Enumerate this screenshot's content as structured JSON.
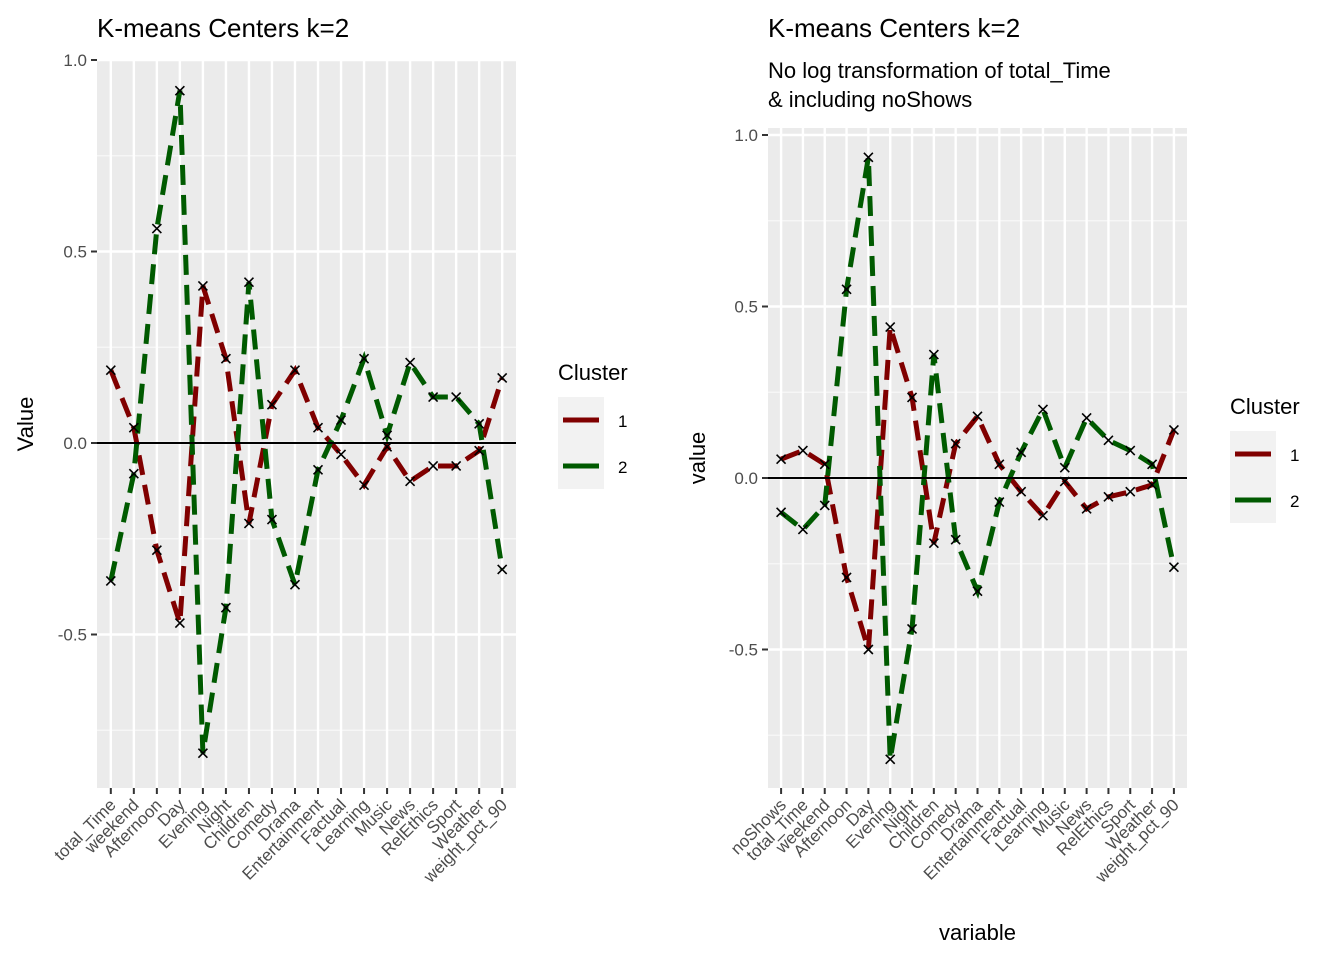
{
  "chart_data": [
    {
      "type": "line",
      "title": "K-means Centers k=2",
      "subtitle": "",
      "xlabel": "",
      "ylabel": "Value",
      "ylim": [
        -0.9,
        1.0
      ],
      "yticks": [
        -0.5,
        0.0,
        0.5,
        1.0
      ],
      "ytick_labels": [
        "-0.5",
        "0.0",
        "0.5",
        "1.0"
      ],
      "grid": true,
      "hline": 0.0,
      "categories": [
        "total_Time",
        "weekend",
        "Afternoon",
        "Day",
        "Evening",
        "Night",
        "Children",
        "Comedy",
        "Drama",
        "Entertainment",
        "Factual",
        "Learning",
        "Music",
        "News",
        "RelEthics",
        "Sport",
        "Weather",
        "weight_pct_90"
      ],
      "legend": {
        "title": "Cluster",
        "placement": "right"
      },
      "series": [
        {
          "name": "1",
          "color": "#800000",
          "linestyle": "dashed",
          "values": [
            0.19,
            0.04,
            -0.28,
            -0.47,
            0.41,
            0.22,
            -0.21,
            0.1,
            0.19,
            0.04,
            -0.03,
            -0.11,
            -0.01,
            -0.1,
            -0.06,
            -0.06,
            -0.02,
            0.17
          ]
        },
        {
          "name": "2",
          "color": "#005a00",
          "linestyle": "dashed",
          "values": [
            -0.36,
            -0.08,
            0.56,
            0.92,
            -0.81,
            -0.43,
            0.42,
            -0.2,
            -0.37,
            -0.07,
            0.06,
            0.22,
            0.02,
            0.21,
            0.12,
            0.12,
            0.05,
            -0.33
          ]
        }
      ]
    },
    {
      "type": "line",
      "title": "K-means Centers k=2",
      "subtitle": "No log transformation of total_Time\n& including noShows",
      "subtitle_lines": [
        "No log transformation of total_Time",
        "& including noShows"
      ],
      "xlabel": "variable",
      "ylabel": "value",
      "ylim": [
        -0.9,
        1.0
      ],
      "yticks": [
        -0.5,
        0.0,
        0.5,
        1.0
      ],
      "ytick_labels": [
        "-0.5",
        "0.0",
        "0.5",
        "1.0"
      ],
      "grid": true,
      "hline": 0.0,
      "categories": [
        "noShows",
        "total_Time",
        "weekend",
        "Afternoon",
        "Day",
        "Evening",
        "Night",
        "Children",
        "Comedy",
        "Drama",
        "Entertainment",
        "Factual",
        "Learning",
        "Music",
        "News",
        "RelEthics",
        "Sport",
        "Weather",
        "weight_pct_90"
      ],
      "legend": {
        "title": "Cluster",
        "placement": "right"
      },
      "series": [
        {
          "name": "1",
          "color": "#800000",
          "linestyle": "dashed",
          "values": [
            0.055,
            0.08,
            0.04,
            -0.29,
            -0.5,
            0.44,
            0.235,
            -0.19,
            0.1,
            0.18,
            0.04,
            -0.04,
            -0.11,
            -0.01,
            -0.09,
            -0.055,
            -0.04,
            -0.02,
            0.14
          ]
        },
        {
          "name": "2",
          "color": "#005a00",
          "linestyle": "dashed",
          "values": [
            -0.1,
            -0.15,
            -0.08,
            0.55,
            0.935,
            -0.82,
            -0.44,
            0.36,
            -0.18,
            -0.33,
            -0.07,
            0.075,
            0.2,
            0.03,
            0.175,
            0.11,
            0.08,
            0.04,
            -0.26
          ]
        }
      ]
    }
  ]
}
